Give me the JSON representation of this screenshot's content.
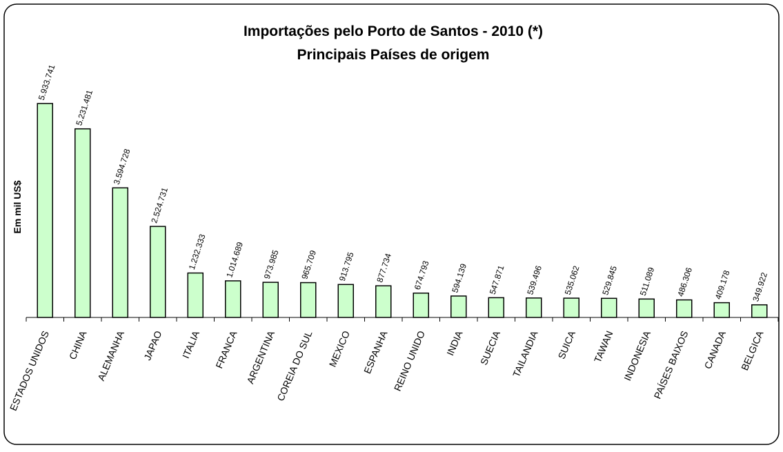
{
  "chart_data": {
    "type": "bar",
    "title": [
      "Importações pelo Porto de Santos - 2010 (*)",
      "Principais Países de origem"
    ],
    "y_label": "Em mil US$",
    "categories": [
      "ESTADOS UNIDOS",
      "CHINA",
      "ALEMANHA",
      "JAPAO",
      "ITALIA",
      "FRANCA",
      "ARGENTINA",
      "COREIA DO SUL",
      "MEXICO",
      "ESPANHA",
      "REINO UNIDO",
      "INDIA",
      "SUECIA",
      "TAILANDIA",
      "SUICA",
      "TAWAN",
      "INDONESIA",
      "PAÍSES BAIXOS",
      "CANADA",
      "BELGICA"
    ],
    "values": [
      5933741,
      5231481,
      3594728,
      2524731,
      1232333,
      1014689,
      973985,
      965709,
      913795,
      877734,
      674793,
      594139,
      547871,
      539496,
      535062,
      529845,
      511089,
      486306,
      409178,
      349922
    ],
    "value_labels": [
      "5.933.741",
      "5.231.481",
      "3.594.728",
      "2.524.731",
      "1.232.333",
      "1.014.689",
      "973.985",
      "965.709",
      "913.795",
      "877.734",
      "674.793",
      "594.139",
      "547.871",
      "539.496",
      "535.062",
      "529.845",
      "511.089",
      "486.306",
      "409.178",
      "349.922"
    ],
    "color": "#ccffcc"
  }
}
